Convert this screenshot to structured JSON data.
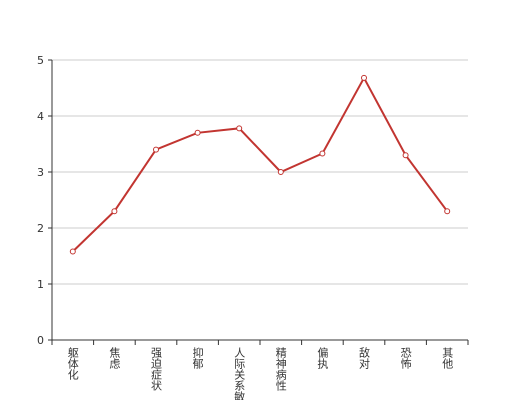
{
  "chart_data": {
    "type": "line",
    "categories": [
      "躯体化",
      "焦虑",
      "强迫症状",
      "抑郁",
      "人际关系敏感",
      "精神病性",
      "偏执",
      "敌对",
      "恐怖",
      "其他"
    ],
    "values": [
      1.58,
      2.3,
      3.4,
      3.7,
      3.78,
      3.0,
      3.33,
      4.68,
      3.3,
      2.3
    ],
    "color": "#c23531",
    "ylim": [
      0,
      5
    ],
    "yticks": [
      0,
      1,
      2,
      3,
      4,
      5
    ],
    "grid": true
  }
}
